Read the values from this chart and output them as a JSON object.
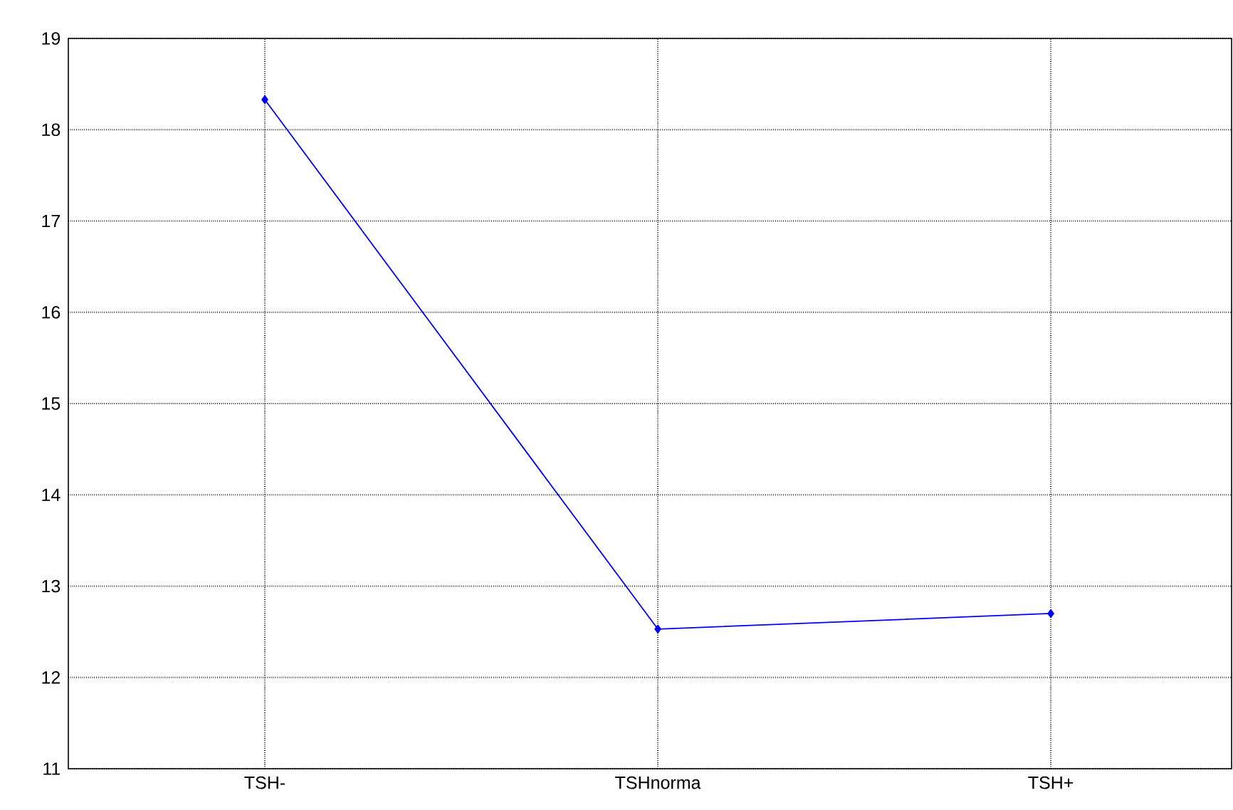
{
  "chart_data": {
    "type": "line",
    "categories": [
      "TSH-",
      "TSHnorma",
      "TSH+"
    ],
    "series": [
      {
        "color": "#0000ff",
        "values": [
          18.33,
          12.53,
          12.7
        ]
      }
    ],
    "ylim": [
      11,
      19
    ],
    "yticks": [
      11,
      12,
      13,
      14,
      15,
      16,
      17,
      18,
      19
    ],
    "grid": true,
    "marker": "diamond",
    "line_style": "solid"
  }
}
